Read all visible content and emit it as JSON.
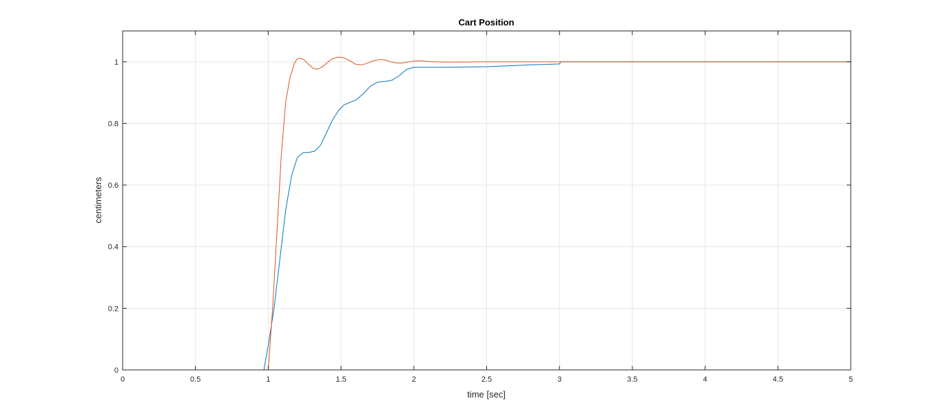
{
  "chart_data": {
    "type": "line",
    "title": "Cart Position",
    "xlabel": "time [sec]",
    "ylabel": "centimeters",
    "xlim": [
      0,
      5
    ],
    "ylim": [
      0,
      1.1
    ],
    "xticks": [
      0,
      0.5,
      1,
      1.5,
      2,
      2.5,
      3,
      3.5,
      4,
      4.5,
      5
    ],
    "xtick_labels": [
      "0",
      "0.5",
      "1",
      "1.5",
      "2",
      "2.5",
      "3",
      "3.5",
      "4",
      "4.5",
      "5"
    ],
    "yticks": [
      0,
      0.2,
      0.4,
      0.6,
      0.8,
      1
    ],
    "ytick_labels": [
      "0",
      "0.2",
      "0.4",
      "0.6",
      "0.8",
      "1"
    ],
    "grid": true,
    "colors": {
      "series_1": "#0072BD",
      "series_2": "#D95319",
      "grid": "#e6e6e6",
      "axes": "#262626"
    },
    "series": [
      {
        "x": [
          0,
          0.97,
          1.0,
          1.04,
          1.08,
          1.12,
          1.16,
          1.2,
          1.24,
          1.28,
          1.32,
          1.36,
          1.4,
          1.44,
          1.48,
          1.52,
          1.56,
          1.6,
          1.65,
          1.7,
          1.75,
          1.8,
          1.85,
          1.9,
          1.95,
          2.0,
          2.2,
          2.5,
          2.8,
          3.0,
          3.01,
          5.0
        ],
        "y": [
          0,
          0,
          0.08,
          0.2,
          0.36,
          0.52,
          0.63,
          0.69,
          0.705,
          0.706,
          0.71,
          0.73,
          0.77,
          0.81,
          0.84,
          0.86,
          0.868,
          0.875,
          0.895,
          0.92,
          0.934,
          0.936,
          0.94,
          0.955,
          0.975,
          0.982,
          0.982,
          0.984,
          0.99,
          0.993,
          1.0,
          1.0
        ]
      },
      {
        "x": [
          0,
          1.0,
          1.03,
          1.06,
          1.09,
          1.12,
          1.15,
          1.18,
          1.2,
          1.22,
          1.25,
          1.28,
          1.31,
          1.34,
          1.37,
          1.4,
          1.44,
          1.48,
          1.52,
          1.56,
          1.6,
          1.64,
          1.68,
          1.72,
          1.76,
          1.8,
          1.84,
          1.88,
          1.92,
          1.96,
          2.0,
          2.05,
          2.1,
          2.2,
          2.3,
          2.5,
          3.0,
          5.0
        ],
        "y": [
          0,
          0,
          0.2,
          0.45,
          0.7,
          0.87,
          0.95,
          0.995,
          1.01,
          1.012,
          1.005,
          0.99,
          0.978,
          0.976,
          0.983,
          0.995,
          1.01,
          1.015,
          1.013,
          1.003,
          0.992,
          0.99,
          0.995,
          1.003,
          1.007,
          1.006,
          1.0,
          0.996,
          0.996,
          0.999,
          1.002,
          1.003,
          1.001,
          0.999,
          0.999,
          1.0,
          1.0,
          1.0
        ]
      }
    ]
  }
}
